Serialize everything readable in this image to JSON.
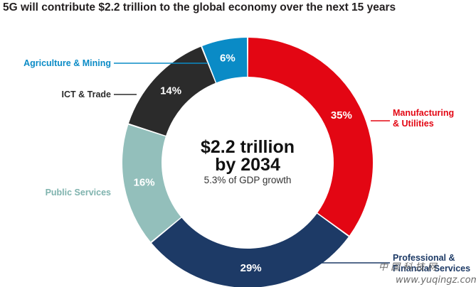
{
  "chart_data": {
    "type": "pie",
    "title": "5G will contribute $2.2 trillion to the global economy over the next 15 years",
    "center_text": {
      "line1": "$2.2 trillion",
      "line2": "by 2034",
      "line3": "5.3% of GDP growth"
    },
    "slices": [
      {
        "label_lines": [
          "Manufacturing",
          "& Utilities"
        ],
        "value": 35,
        "value_label": "35%",
        "color": "#e30613"
      },
      {
        "label_lines": [
          "Professional &",
          "Financial Services"
        ],
        "value": 29,
        "value_label": "29%",
        "color": "#1d3a66"
      },
      {
        "label_lines": [
          "Public Services"
        ],
        "value": 16,
        "value_label": "16%",
        "color": "#93bfbb"
      },
      {
        "label_lines": [
          "ICT & Trade"
        ],
        "value": 14,
        "value_label": "14%",
        "color": "#2b2b2b"
      },
      {
        "label_lines": [
          "Agriculture & Mining"
        ],
        "value": 6,
        "value_label": "6%",
        "color": "#0a8bc6"
      }
    ]
  },
  "watermark": {
    "chinese": "中 国 科 技 网",
    "url": "www.yuqingz.com"
  }
}
